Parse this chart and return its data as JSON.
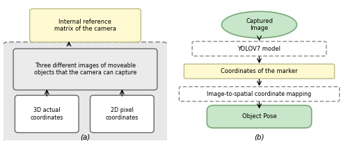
{
  "fig_width": 5.0,
  "fig_height": 2.13,
  "dpi": 100,
  "caption_a": "(a)",
  "caption_b": "(b)",
  "panel_a": {
    "box_top_text": "Internal reference\nmatrix of the camera",
    "box_top_color": "#fef9d0",
    "box_top_edgecolor": "#bbbb88",
    "box_inner_text": "Three different images of moveable\nobjects that the camera can capture",
    "box_inner_color": "#ebebeb",
    "box_inner_edgecolor": "#666666",
    "box_outer_color": "#e8e8e8",
    "box_outer_edgecolor": "#888888",
    "box_left_text": "3D actual\ncoordinates",
    "box_right_text": "2D pixel\ncoordinates",
    "box_lr_color": "#ffffff",
    "box_lr_edgecolor": "#666666"
  },
  "panel_b": {
    "box1_text": "Captured\nImage",
    "box1_color": "#c8e6c9",
    "box1_edgecolor": "#78a878",
    "box2_text": "YOLOV7 model",
    "box2_color": "#ffffff",
    "box2_edgecolor": "#888888",
    "box3_text": "Coordinates of the marker",
    "box3_color": "#fef9d0",
    "box3_edgecolor": "#bbbb88",
    "box4_text": "Image-to-spatial coordinate mapping",
    "box4_color": "#ffffff",
    "box4_edgecolor": "#888888",
    "box5_text": "Object Pose",
    "box5_color": "#c8e6c9",
    "box5_edgecolor": "#78a878"
  }
}
